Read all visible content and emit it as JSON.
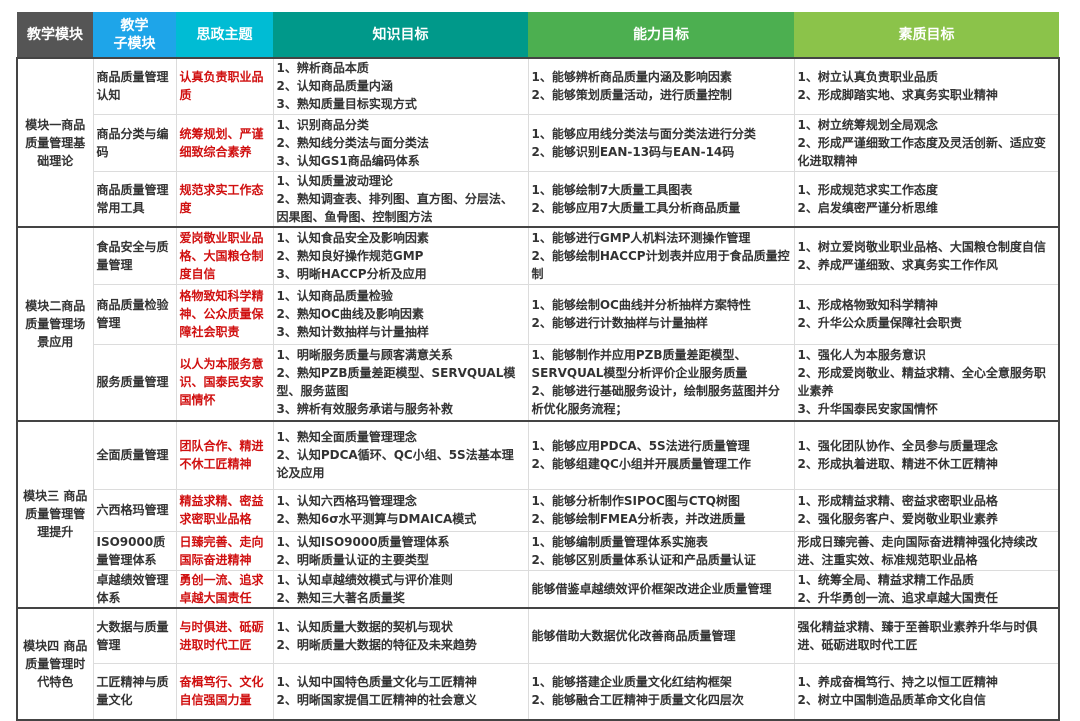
{
  "header": {
    "columns": [
      {
        "label": "教学模块",
        "color": "#555555"
      },
      {
        "label": "教学\n子模块",
        "color": "#1ea5e9"
      },
      {
        "label": "思政主题",
        "color": "#00bcd4"
      },
      {
        "label": "知识目标",
        "color": "#00998a"
      },
      {
        "label": "能力目标",
        "color": "#4caf50"
      },
      {
        "label": "素质目标",
        "color": "#8bc34a"
      }
    ]
  },
  "theme_color": "#d01010",
  "modules": [
    {
      "name": "模块一商品质量管理基础理论",
      "rows": [
        {
          "sub": "商品质量管理认知",
          "theme": "认真负责职业品质",
          "knowledge": "1、辨析商品本质\n2、认知商品质量内涵\n3、熟知质量目标实现方式",
          "ability": "1、能够辨析商品质量内涵及影响因素\n2、能够策划质量活动，进行质量控制",
          "quality": "1、树立认真负责职业品质\n2、形成脚踏实地、求真务实职业精神"
        },
        {
          "sub": "商品分类与编码",
          "theme": "统筹规划、严谨细致综合素养",
          "knowledge": "1、识别商品分类\n2、熟知线分类法与面分类法\n3、认知GS1商品编码体系",
          "ability": "1、能够应用线分类法与面分类法进行分类\n2、能够识别EAN-13码与EAN-14码",
          "quality": "1、树立统筹规划全局观念\n2、形成严谨细致工作态度及灵活创新、适应变化进取精神"
        },
        {
          "sub": "商品质量管理常用工具",
          "theme": "规范求实工作态度",
          "knowledge": "1、认知质量波动理论\n2、熟知调查表、排列图、直方图、分层法、因果图、鱼骨图、控制图方法",
          "ability": "1、能够绘制7大质量工具图表\n2、能够应用7大质量工具分析商品质量",
          "quality": "1、形成规范求实工作态度\n2、启发缜密严谨分析思维"
        }
      ]
    },
    {
      "name": "模块二商品质量管理场景应用",
      "rows": [
        {
          "sub": "食品安全与质量管理",
          "theme": "爱岗敬业职业品格、大国粮仓制度自信",
          "knowledge": "1、认知食品安全及影响因素\n2、熟知良好操作规范GMP\n3、明晰HACCP分析及应用",
          "ability": "1、能够进行GMP人机料法环测操作管理\n2、能够绘制HACCP计划表并应用于食品质量控制",
          "quality": "1、树立爱岗敬业职业品格、大国粮仓制度自信\n2、养成严谨细致、求真务实工作作风"
        },
        {
          "sub": "商品质量检验管理",
          "theme": "格物致知科学精神、公众质量保障社会职责",
          "knowledge": "1、认知商品质量检验\n2、熟知OC曲线及影响因素\n3、熟知计数抽样与计量抽样",
          "ability": "1、能够绘制OC曲线并分析抽样方案特性\n2、能够进行计数抽样与计量抽样",
          "quality": "1、形成格物致知科学精神\n2、升华公众质量保障社会职责"
        },
        {
          "sub": "服务质量管理",
          "theme": "以人为本服务意识、国泰民安家国情怀",
          "knowledge": "1、明晰服务质量与顾客满意关系\n2、熟知PZB质量差距模型、SERVQUAL模型、服务蓝图\n3、辨析有效服务承诺与服务补救",
          "ability": "1、能够制作并应用PZB质量差距模型、SERVQUAL模型分析评价企业服务质量\n2、能够进行基础服务设计，绘制服务蓝图并分析优化服务流程；",
          "quality": "1、强化人为本服务意识\n2、形成爱岗敬业、精益求精、全心全意服务职业素养\n3、升华国泰民安家国情怀"
        }
      ]
    },
    {
      "name": "模块三 商品质量管理管理提升",
      "rows": [
        {
          "sub": "全面质量管理",
          "theme": "团队合作、精进不休工匠精神",
          "knowledge": "1、熟知全面质量管理理念\n2、认知PDCA循环、QC小组、5S法基本理论及应用",
          "ability": "1、能够应用PDCA、5S法进行质量管理\n2、能够组建QC小组并开展质量管理工作",
          "quality": "1、强化团队协作、全员参与质量理念\n2、形成执着进取、精进不休工匠精神"
        },
        {
          "sub": "六西格玛管理",
          "theme": "精益求精、密益求密职业品格",
          "knowledge": "1、认知六西格玛管理理念\n2、熟知6σ水平测算与DMAICA模式",
          "ability": "1、能够分析制作SIPOC图与CTQ树图\n2、能够绘制FMEA分析表，并改进质量",
          "quality": "1、形成精益求精、密益求密职业品格\n2、强化服务客户、爱岗敬业职业素养"
        },
        {
          "sub": "ISO9000质量管理体系",
          "theme": "日臻完善、走向国际奋进精神",
          "knowledge": "1、认知ISO9000质量管理体系\n2、明晰质量认证的主要类型",
          "ability": "1、能够编制质量管理体系实施表\n2、能够区别质量体系认证和产品质量认证",
          "quality": "形成日臻完善、走向国际奋进精神强化持续改进、注重实效、标准规范职业品格"
        },
        {
          "sub": "卓越绩效管理体系",
          "theme": "勇创一流、追求卓越大国责任",
          "knowledge": "1、认知卓越绩效模式与评价准则\n2、熟知三大著名质量奖",
          "ability": "能够借鉴卓越绩效评价框架改进企业质量管理",
          "quality": "1、统筹全局、精益求精工作品质\n2、升华勇创一流、追求卓越大国责任"
        }
      ]
    },
    {
      "name": "模块四 商品质量管理时代特色",
      "rows": [
        {
          "sub": "大数据与质量管理",
          "theme": "与时俱进、砥砺进取时代工匠",
          "knowledge": "1、认知质量大数据的契机与现状\n2、明晰质量大数据的特征及未来趋势",
          "ability": "能够借助大数据优化改善商品质量管理",
          "quality": "强化精益求精、臻于至善职业素养升华与时俱进、砥砺进取时代工匠"
        },
        {
          "sub": "工匠精神与质量文化",
          "theme": "奋楫笃行、文化自信强国力量",
          "knowledge": "1、认知中国特色质量文化与工匠精神\n2、明晰国家提倡工匠精神的社会意义",
          "ability": "1、能够搭建企业质量文化红结构框架\n2、能够融合工匠精神于质量文化四层次",
          "quality": "1、养成奋楫笃行、持之以恒工匠精神\n2、树立中国制造品质革命文化自信"
        }
      ]
    }
  ]
}
